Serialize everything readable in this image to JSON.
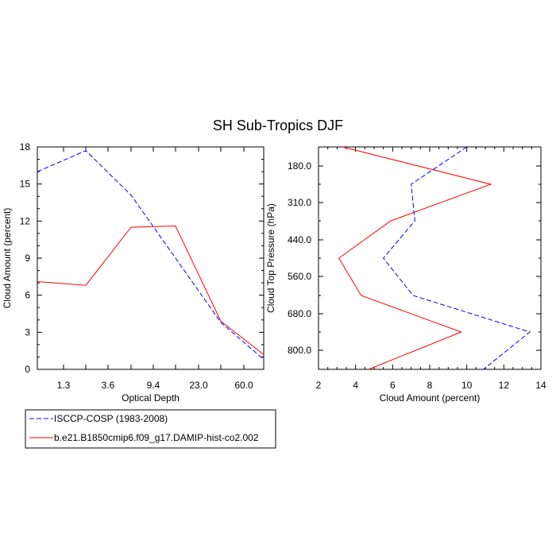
{
  "title": "SH Sub-Tropics DJF",
  "colors": {
    "obs": "#0000ff",
    "model": "#ff0000",
    "axis": "#000000"
  },
  "legend": {
    "items": [
      {
        "label": "ISCCP-COSP (1983-2008)",
        "style": "dashed",
        "color": "#0000ff"
      },
      {
        "label": "b.e21.B1850cmip6.f09_g17.DAMIP-hist-co2.002",
        "style": "solid",
        "color": "#ff0000"
      }
    ]
  },
  "chart_data": [
    {
      "type": "line",
      "xscale": "categorical",
      "xlabel": "Optical Depth",
      "ylabel": "Cloud Amount (percent)",
      "x_ticklabels": [
        "1.3",
        "3.6",
        "9.4",
        "23.0",
        "60.0"
      ],
      "x_range": [
        0,
        7
      ],
      "ylim": [
        0,
        18
      ],
      "y_ticks": [
        0,
        3,
        6,
        9,
        12,
        15,
        18
      ],
      "series": [
        {
          "name": "ISCCP-COSP (1983-2008)",
          "style": "dashed",
          "color": "#0000ff",
          "x": [
            0,
            1.5,
            3,
            4.5,
            6,
            7
          ],
          "y": [
            16.0,
            17.7,
            14.1,
            9.0,
            3.8,
            0.8
          ]
        },
        {
          "name": "b.e21.B1850cmip6.f09_g17.DAMIP-hist-co2.002",
          "style": "solid",
          "color": "#ff0000",
          "x": [
            0,
            1.5,
            3,
            4.5,
            6,
            7
          ],
          "y": [
            7.1,
            6.8,
            11.5,
            11.6,
            3.9,
            1.2
          ]
        }
      ]
    },
    {
      "type": "line",
      "xlabel": "Cloud Amount (percent)",
      "ylabel": "Cloud Top Pressure (hPa)",
      "xlim": [
        2,
        14
      ],
      "x_ticks": [
        2,
        4,
        6,
        8,
        10,
        12,
        14
      ],
      "y_ticklabels": [
        "180.0",
        "310.0",
        "440.0",
        "560.0",
        "680.0",
        "800.0"
      ],
      "y_range": [
        0,
        7
      ],
      "series": [
        {
          "name": "ISCCP-COSP (1983-2008)",
          "style": "dashed",
          "color": "#0000ff",
          "level": [
            0,
            1,
            2,
            3,
            4,
            5,
            6
          ],
          "x": [
            10.0,
            7.0,
            7.2,
            5.5,
            7.1,
            13.4,
            10.9
          ]
        },
        {
          "name": "b.e21.B1850cmip6.f09_g17.DAMIP-hist-co2.002",
          "style": "solid",
          "color": "#ff0000",
          "level": [
            0,
            1,
            2,
            3,
            4,
            5,
            6
          ],
          "x": [
            3.3,
            11.3,
            5.9,
            3.1,
            4.3,
            9.7,
            4.7
          ]
        }
      ]
    }
  ]
}
